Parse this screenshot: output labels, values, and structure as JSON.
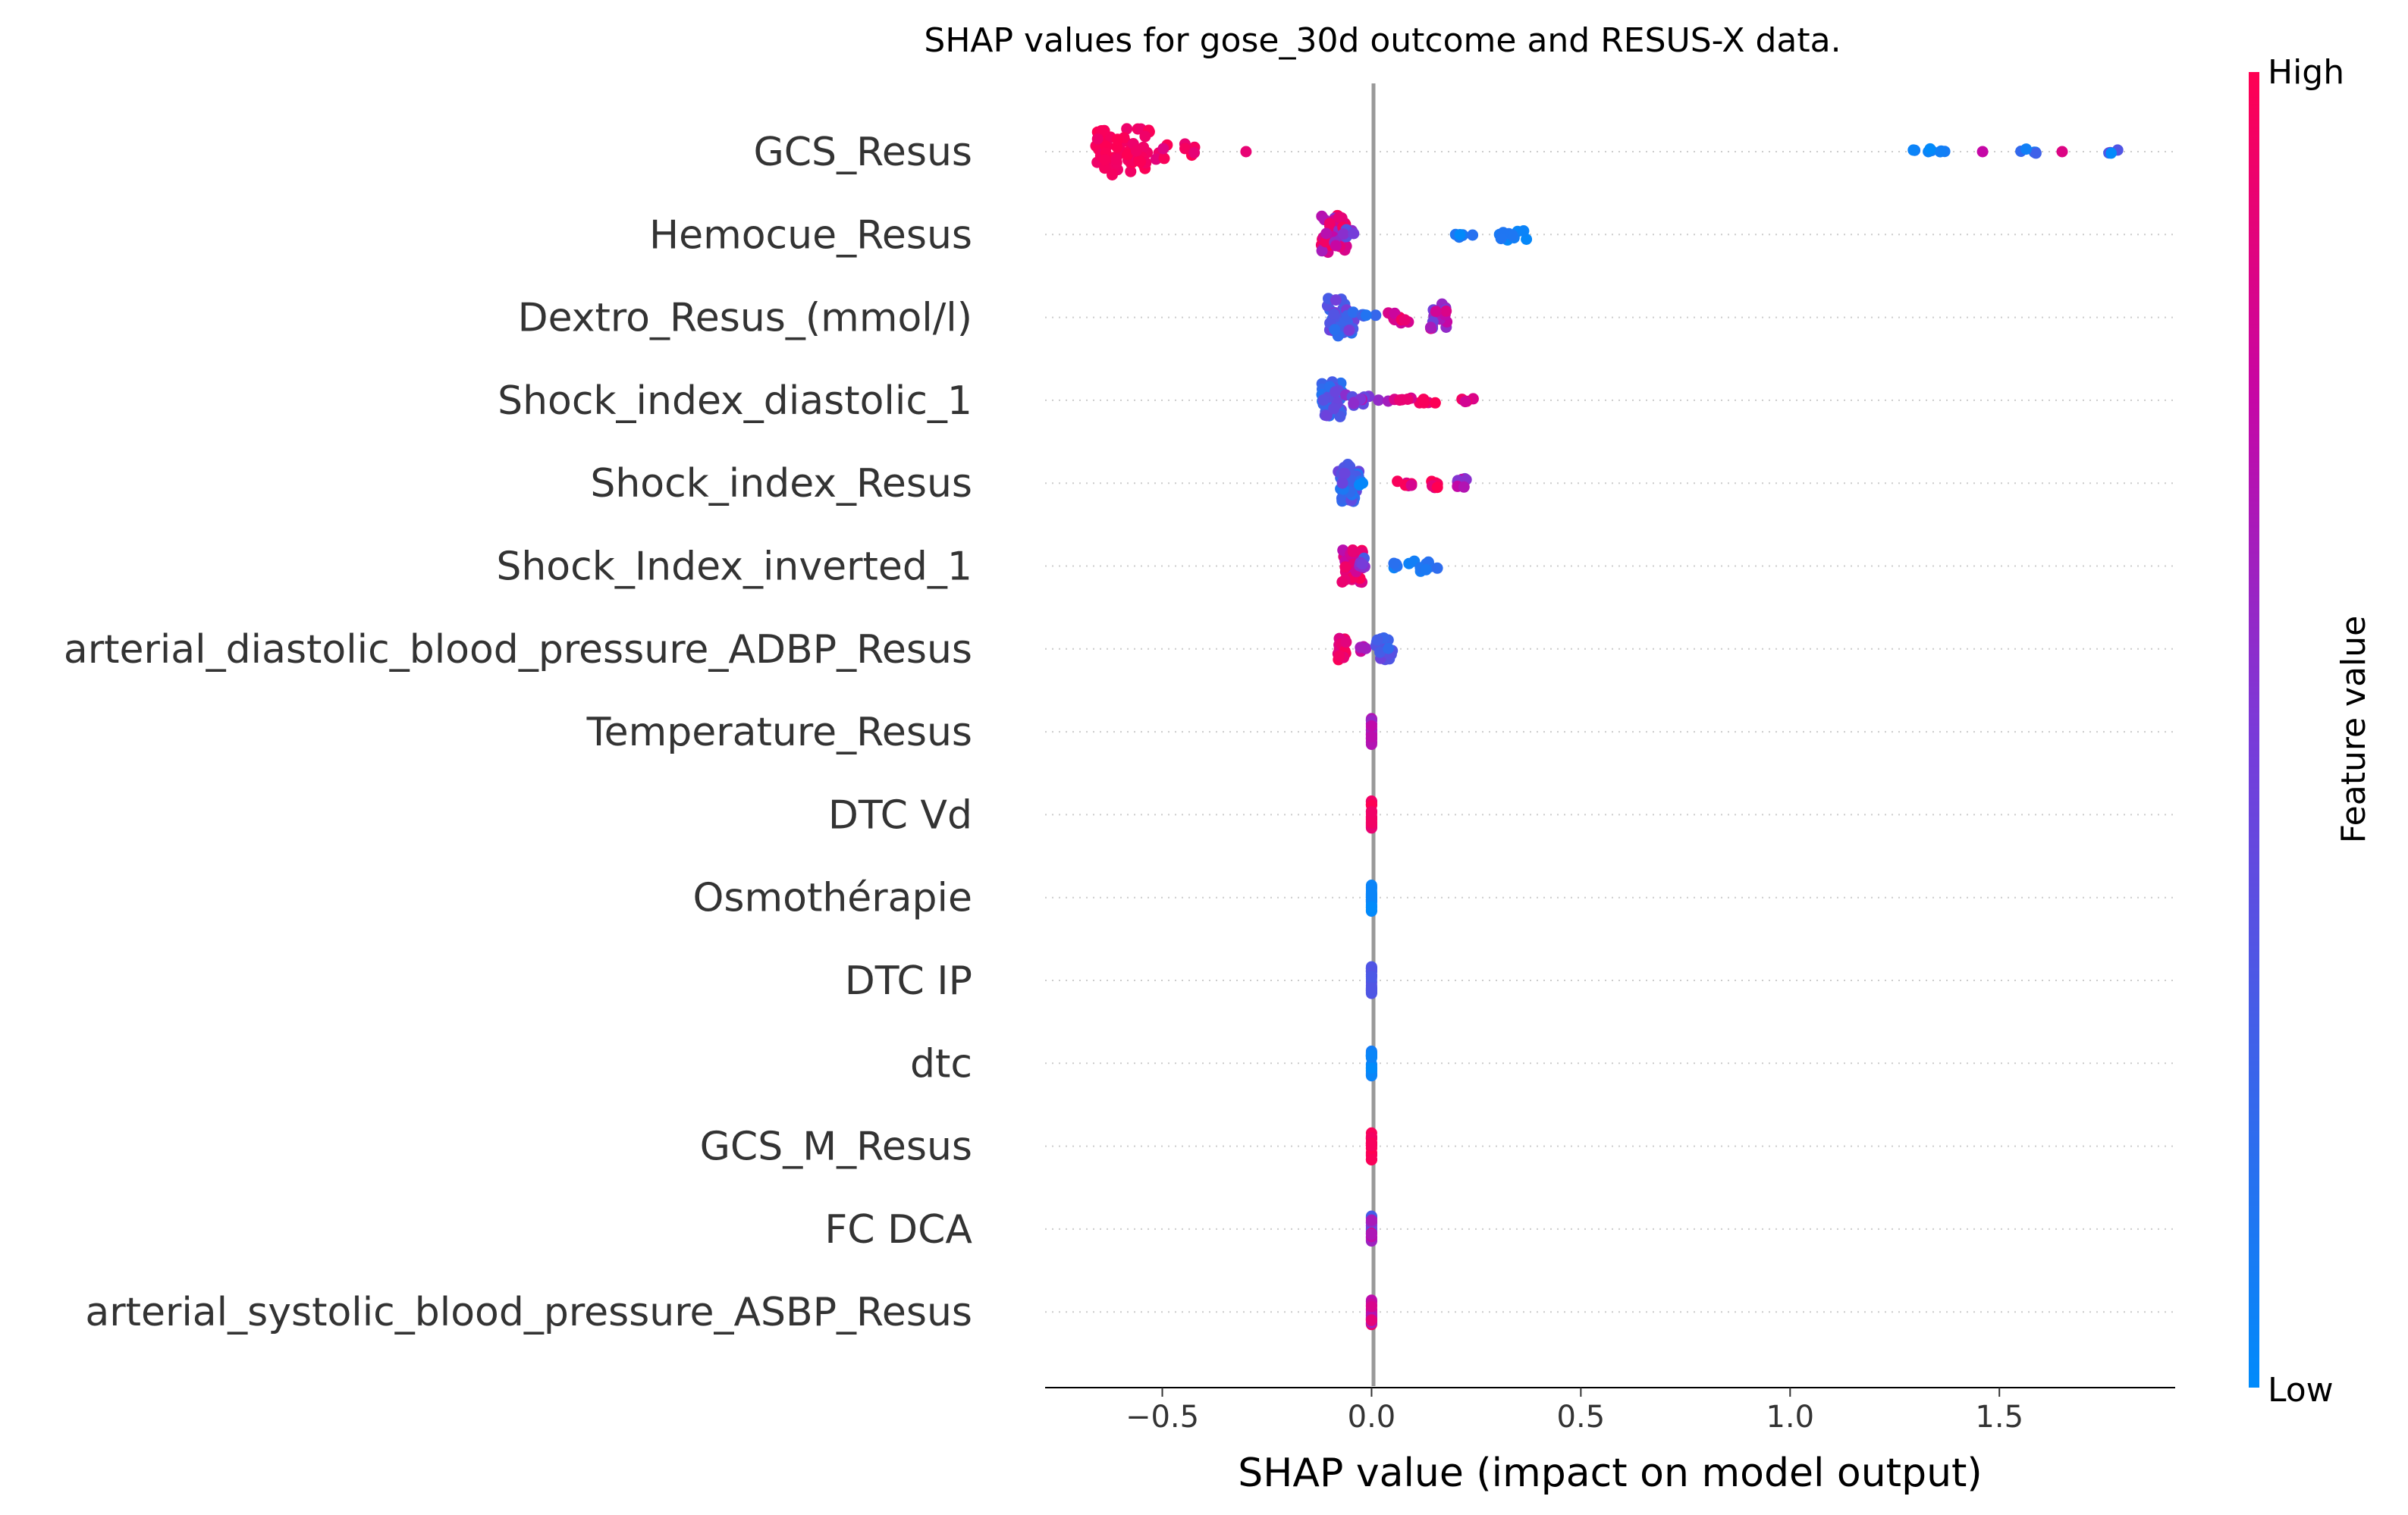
{
  "chart_data": {
    "type": "scatter",
    "subtype": "shap-beeswarm",
    "title": "SHAP values for gose_30d outcome and RESUS-X data.",
    "xlabel": "SHAP value (impact on model output)",
    "xlim": [
      -0.78,
      1.92
    ],
    "xticks": [
      {
        "value": -0.5,
        "label": "−0.5"
      },
      {
        "value": 0.0,
        "label": "0.0"
      },
      {
        "value": 0.5,
        "label": "0.5"
      },
      {
        "value": 1.0,
        "label": "1.0"
      },
      {
        "value": 1.5,
        "label": "1.5"
      }
    ],
    "colorbar": {
      "label": "Feature value",
      "high": "High",
      "low": "Low",
      "high_color": "#ff0052",
      "low_color": "#008bfb"
    },
    "features": [
      {
        "name": "GCS_Resus",
        "clusters": [
          {
            "x": [
              -0.66,
              -0.53
            ],
            "n": 60,
            "c": [
              0.92,
              1.0
            ],
            "s": 9
          },
          {
            "x": [
              -0.52,
              -0.42
            ],
            "n": 10,
            "c": [
              0.85,
              1.0
            ],
            "s": 3
          },
          {
            "x": [
              -0.3,
              -0.3
            ],
            "n": 1,
            "c": [
              0.9,
              0.9
            ],
            "s": 0
          },
          {
            "x": [
              1.29,
              1.4
            ],
            "n": 8,
            "c": [
              0.0,
              0.1
            ],
            "s": 1
          },
          {
            "x": [
              1.46,
              1.46
            ],
            "n": 1,
            "c": [
              0.75,
              0.75
            ],
            "s": 0
          },
          {
            "x": [
              1.53,
              1.59
            ],
            "n": 5,
            "c": [
              0.0,
              0.35
            ],
            "s": 1
          },
          {
            "x": [
              1.65,
              1.65
            ],
            "n": 1,
            "c": [
              0.85,
              0.85
            ],
            "s": 0
          },
          {
            "x": [
              1.76,
              1.79
            ],
            "n": 4,
            "c": [
              0.0,
              0.8
            ],
            "s": 1
          }
        ]
      },
      {
        "name": "Hemocue_Resus",
        "clusters": [
          {
            "x": [
              -0.12,
              -0.06
            ],
            "n": 50,
            "c": [
              0.55,
              1.0
            ],
            "s": 7
          },
          {
            "x": [
              -0.07,
              -0.04
            ],
            "n": 8,
            "c": [
              0.35,
              0.6
            ],
            "s": 2
          },
          {
            "x": [
              0.2,
              0.25
            ],
            "n": 6,
            "c": [
              0.0,
              0.2
            ],
            "s": 1
          },
          {
            "x": [
              0.3,
              0.38
            ],
            "n": 10,
            "c": [
              0.0,
              0.25
            ],
            "s": 2
          }
        ]
      },
      {
        "name": "Dextro_Resus_(mmol/l)",
        "clusters": [
          {
            "x": [
              -0.11,
              -0.04
            ],
            "n": 45,
            "c": [
              0.15,
              0.5
            ],
            "s": 7
          },
          {
            "x": [
              -0.03,
              0.02
            ],
            "n": 6,
            "c": [
              0.0,
              0.3
            ],
            "s": 1
          },
          {
            "x": [
              0.04,
              0.09
            ],
            "n": 10,
            "c": [
              0.75,
              1.0
            ],
            "s": 2
          },
          {
            "x": [
              0.14,
              0.18
            ],
            "n": 20,
            "c": [
              0.45,
              0.85
            ],
            "s": 5
          }
        ]
      },
      {
        "name": "Shock_index_diastolic_1",
        "clusters": [
          {
            "x": [
              -0.12,
              -0.07
            ],
            "n": 40,
            "c": [
              0.1,
              0.45
            ],
            "s": 7
          },
          {
            "x": [
              -0.07,
              0.04
            ],
            "n": 12,
            "c": [
              0.35,
              0.7
            ],
            "s": 2
          },
          {
            "x": [
              0.05,
              0.26
            ],
            "n": 14,
            "c": [
              0.8,
              1.0
            ],
            "s": 1
          }
        ]
      },
      {
        "name": "Shock_index_Resus",
        "clusters": [
          {
            "x": [
              -0.08,
              -0.03
            ],
            "n": 35,
            "c": [
              0.1,
              0.45
            ],
            "s": 7
          },
          {
            "x": [
              -0.03,
              -0.02
            ],
            "n": 3,
            "c": [
              0.0,
              0.2
            ],
            "s": 1
          },
          {
            "x": [
              0.06,
              0.1
            ],
            "n": 6,
            "c": [
              0.8,
              1.0
            ],
            "s": 1
          },
          {
            "x": [
              0.14,
              0.17
            ],
            "n": 6,
            "c": [
              0.75,
              1.0
            ],
            "s": 2
          },
          {
            "x": [
              0.2,
              0.23
            ],
            "n": 8,
            "c": [
              0.5,
              0.8
            ],
            "s": 2
          }
        ]
      },
      {
        "name": "Shock_Index_inverted_1",
        "clusters": [
          {
            "x": [
              -0.07,
              -0.02
            ],
            "n": 30,
            "c": [
              0.7,
              1.0
            ],
            "s": 6
          },
          {
            "x": [
              -0.03,
              -0.01
            ],
            "n": 6,
            "c": [
              0.3,
              0.6
            ],
            "s": 3
          },
          {
            "x": [
              0.05,
              0.09
            ],
            "n": 6,
            "c": [
              0.0,
              0.2
            ],
            "s": 1
          },
          {
            "x": [
              0.1,
              0.16
            ],
            "n": 8,
            "c": [
              0.0,
              0.2
            ],
            "s": 2
          }
        ]
      },
      {
        "name": "arterial_diastolic_blood_pressure_ADBP_Resus",
        "clusters": [
          {
            "x": [
              -0.08,
              -0.06
            ],
            "n": 20,
            "c": [
              0.85,
              1.0
            ],
            "s": 4
          },
          {
            "x": [
              -0.03,
              0.0
            ],
            "n": 5,
            "c": [
              0.6,
              0.9
            ],
            "s": 1
          },
          {
            "x": [
              0.01,
              0.05
            ],
            "n": 25,
            "c": [
              0.2,
              0.45
            ],
            "s": 4
          }
        ]
      },
      {
        "name": "Temperature_Resus",
        "clusters": [
          {
            "x": [
              0.0,
              0.0
            ],
            "n": 30,
            "c": [
              0.6,
              0.75
            ],
            "s": 5
          }
        ]
      },
      {
        "name": "DTC Vd",
        "clusters": [
          {
            "x": [
              0.0,
              0.0
            ],
            "n": 30,
            "c": [
              0.9,
              1.0
            ],
            "s": 5
          }
        ]
      },
      {
        "name": "Osmothérapie",
        "clusters": [
          {
            "x": [
              0.0,
              0.0
            ],
            "n": 30,
            "c": [
              0.0,
              0.05
            ],
            "s": 5
          }
        ]
      },
      {
        "name": "DTC IP",
        "clusters": [
          {
            "x": [
              0.0,
              0.0
            ],
            "n": 30,
            "c": [
              0.3,
              0.35
            ],
            "s": 5
          }
        ]
      },
      {
        "name": "dtc",
        "clusters": [
          {
            "x": [
              0.0,
              0.0
            ],
            "n": 30,
            "c": [
              0.0,
              0.1
            ],
            "s": 5
          }
        ]
      },
      {
        "name": "GCS_M_Resus",
        "clusters": [
          {
            "x": [
              0.0,
              0.0
            ],
            "n": 30,
            "c": [
              0.95,
              1.0
            ],
            "s": 5
          }
        ]
      },
      {
        "name": "FC  DCA",
        "clusters": [
          {
            "x": [
              0.0,
              0.0
            ],
            "n": 30,
            "c": [
              0.25,
              0.9
            ],
            "s": 5
          }
        ]
      },
      {
        "name": "arterial_systolic_blood_pressure_ASBP_Resus",
        "clusters": [
          {
            "x": [
              0.0,
              0.0
            ],
            "n": 30,
            "c": [
              0.6,
              0.95
            ],
            "s": 5
          }
        ]
      }
    ]
  }
}
